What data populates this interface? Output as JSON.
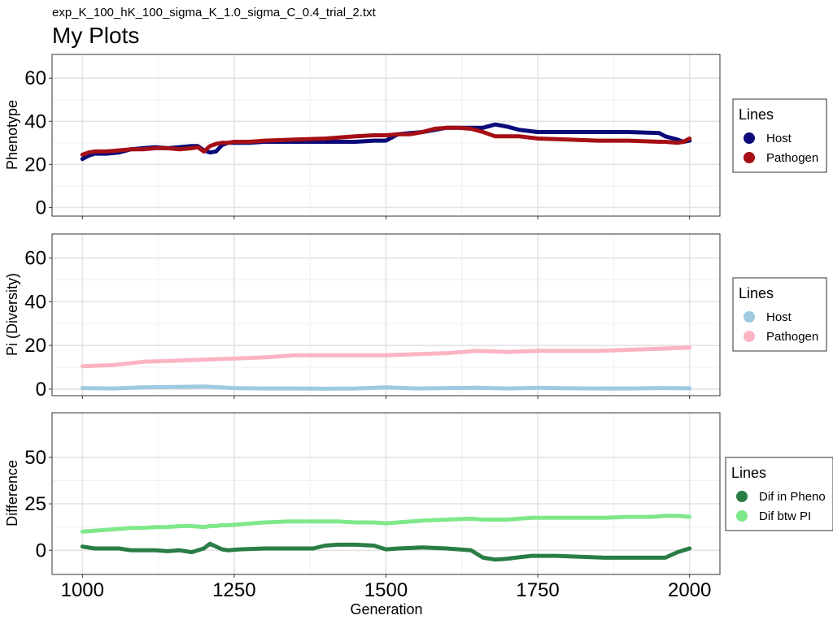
{
  "subtitle": "exp_K_100_hK_100_sigma_K_1.0_sigma_C_0.4_trial_2.txt",
  "title": "My Plots",
  "x_axis_label": "Generation",
  "chart_data": [
    {
      "type": "line",
      "ylabel": "Phenotype",
      "xlim": [
        950,
        2050
      ],
      "ylim": [
        -4,
        71
      ],
      "x_ticks": [
        1000,
        1250,
        1500,
        1750,
        2000
      ],
      "y_ticks": [
        0,
        20,
        40,
        60
      ],
      "grid": true,
      "legend": {
        "title": "Lines",
        "position": "right"
      },
      "x": [
        1000,
        1010,
        1020,
        1040,
        1060,
        1080,
        1100,
        1120,
        1140,
        1160,
        1180,
        1190,
        1200,
        1210,
        1220,
        1230,
        1240,
        1250,
        1275,
        1300,
        1350,
        1400,
        1450,
        1480,
        1500,
        1520,
        1540,
        1560,
        1580,
        1600,
        1620,
        1640,
        1660,
        1680,
        1700,
        1720,
        1750,
        1800,
        1850,
        1900,
        1950,
        1960,
        1980,
        1990,
        2000
      ],
      "series": [
        {
          "name": "Host",
          "color": "#0a0a7a",
          "values": [
            22.5,
            24,
            25,
            25,
            25.5,
            27,
            27.5,
            28,
            27.5,
            28,
            28.5,
            28.5,
            26.5,
            25.5,
            26,
            29,
            30,
            30,
            30,
            30.5,
            30.5,
            30.5,
            30.5,
            31,
            31,
            34,
            34.5,
            35,
            36,
            37,
            37,
            37,
            37,
            38.5,
            37.5,
            36,
            35,
            35,
            35,
            35,
            34.5,
            33,
            31.5,
            30.5,
            31
          ]
        },
        {
          "name": "Pathogen",
          "color": "#a50f15",
          "values": [
            24.5,
            25.5,
            26,
            26,
            26.5,
            27,
            27,
            27.5,
            27.5,
            27,
            27.5,
            28,
            26,
            28.5,
            29.5,
            30,
            30,
            30.5,
            30.5,
            31,
            31.5,
            32,
            33,
            33.5,
            33.5,
            34,
            34,
            35,
            36.5,
            37,
            37,
            36.5,
            35,
            33,
            33,
            33,
            32,
            31.5,
            31,
            31,
            30.5,
            30.5,
            30,
            30.5,
            32
          ]
        }
      ]
    },
    {
      "type": "line",
      "ylabel": "Pi (Diversity)",
      "xlim": [
        950,
        2050
      ],
      "ylim": [
        -3,
        71
      ],
      "x_ticks": [
        1000,
        1250,
        1500,
        1750,
        2000
      ],
      "y_ticks": [
        0,
        20,
        40,
        60
      ],
      "grid": true,
      "legend": {
        "title": "Lines",
        "position": "right"
      },
      "x": [
        1000,
        1050,
        1100,
        1150,
        1200,
        1250,
        1300,
        1350,
        1400,
        1450,
        1500,
        1550,
        1600,
        1650,
        1700,
        1750,
        1800,
        1850,
        1900,
        1950,
        2000
      ],
      "series": [
        {
          "name": "Host",
          "color": "#9ecae1",
          "values": [
            0.5,
            0.3,
            0.8,
            1.0,
            1.2,
            0.5,
            0.3,
            0.3,
            0.2,
            0.3,
            0.8,
            0.3,
            0.5,
            0.6,
            0.3,
            0.6,
            0.4,
            0.3,
            0.3,
            0.5,
            0.4
          ]
        },
        {
          "name": "Pathogen",
          "color": "#fbb4c4",
          "values": [
            10.5,
            11,
            12.5,
            13,
            13.5,
            14,
            14.5,
            15.5,
            15.5,
            15.5,
            15.5,
            16,
            16.5,
            17.5,
            17,
            17.5,
            17.5,
            17.5,
            18,
            18.5,
            19
          ]
        }
      ]
    },
    {
      "type": "line",
      "ylabel": "Difference",
      "xlim": [
        950,
        2050
      ],
      "ylim": [
        -13,
        74
      ],
      "x_ticks": [
        1000,
        1250,
        1500,
        1750,
        2000
      ],
      "y_ticks": [
        0,
        25,
        50
      ],
      "grid": true,
      "legend": {
        "title": "Lines",
        "position": "right"
      },
      "x": [
        1000,
        1020,
        1040,
        1060,
        1080,
        1100,
        1120,
        1140,
        1160,
        1180,
        1200,
        1210,
        1220,
        1230,
        1240,
        1260,
        1300,
        1340,
        1380,
        1400,
        1420,
        1450,
        1480,
        1500,
        1520,
        1560,
        1600,
        1640,
        1660,
        1680,
        1700,
        1740,
        1780,
        1820,
        1860,
        1900,
        1940,
        1960,
        1980,
        2000
      ],
      "series": [
        {
          "name": "Dif in Pheno",
          "color": "#2a7d45",
          "values": [
            2,
            1,
            1,
            1,
            0,
            0,
            0,
            -0.5,
            0,
            -1,
            1,
            3.5,
            2,
            0.5,
            0,
            0.5,
            1,
            1,
            1,
            2.5,
            3,
            3,
            2.5,
            0.5,
            1,
            1.5,
            1,
            0,
            -4,
            -5,
            -4.5,
            -3,
            -3,
            -3.5,
            -4,
            -4,
            -4,
            -4,
            -1,
            1
          ]
        },
        {
          "name": "Dif btw PI",
          "color": "#7fe88a",
          "values": [
            10,
            10.5,
            11,
            11.5,
            12,
            12,
            12.5,
            12.5,
            13,
            13,
            12.5,
            13,
            13,
            13.5,
            13.5,
            14,
            15,
            15.5,
            15.5,
            15.5,
            15.5,
            15,
            15,
            14.5,
            15,
            16,
            16.5,
            17,
            16.5,
            16.5,
            16.5,
            17.5,
            17.5,
            17.5,
            17.5,
            18,
            18,
            18.5,
            18.5,
            18
          ]
        }
      ]
    }
  ]
}
